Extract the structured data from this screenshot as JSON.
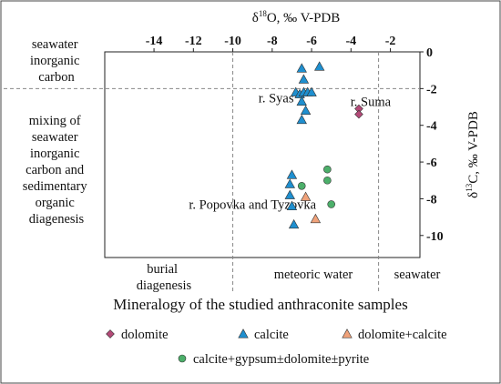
{
  "chart_data": {
    "type": "scatter",
    "title": "",
    "xlabel": "δ18O, ‰ V-PDB",
    "xlabel_main": "δ",
    "xlabel_sup": "18",
    "xlabel_rest": "O, ‰ V-PDB",
    "ylabel": "δ13C, ‰ V-PDB",
    "ylabel_main": "δ",
    "ylabel_sup": "13",
    "ylabel_rest": "C, ‰ V-PDB",
    "xlim": [
      -16.5,
      -0.5
    ],
    "ylim": [
      -11.2,
      0
    ],
    "x_axis_position": "top",
    "y_axis_position": "right",
    "x_ticks": [
      -14,
      -12,
      -10,
      -8,
      -6,
      -4,
      -2
    ],
    "x_tick_labels": [
      "-14",
      "-12",
      "-10",
      "-8",
      "-6",
      "-4",
      "-2"
    ],
    "y_ticks": [
      0,
      -2,
      -4,
      -6,
      -8,
      -10
    ],
    "y_tick_labels": [
      "0",
      "-2",
      "-4",
      "-6",
      "-8",
      "-10"
    ],
    "grid": false,
    "reference_lines": [
      {
        "orientation": "vertical",
        "x": -10,
        "style": "dashed"
      },
      {
        "orientation": "vertical",
        "x": -2.6,
        "style": "dashed"
      },
      {
        "orientation": "horizontal",
        "y": -2,
        "style": "dashed",
        "extends_left": true
      }
    ],
    "series": [
      {
        "name": "dolomite",
        "marker": "diamond",
        "color": "#b44a78",
        "points": [
          {
            "x": -3.6,
            "y": -3.1
          },
          {
            "x": -3.6,
            "y": -3.4
          }
        ]
      },
      {
        "name": "calcite",
        "marker": "triangle",
        "color": "#1f8fcf",
        "points": [
          {
            "x": -6.5,
            "y": -0.9
          },
          {
            "x": -5.6,
            "y": -0.8
          },
          {
            "x": -6.4,
            "y": -1.5
          },
          {
            "x": -6.8,
            "y": -2.2
          },
          {
            "x": -6.6,
            "y": -2.3
          },
          {
            "x": -6.4,
            "y": -2.2
          },
          {
            "x": -6.2,
            "y": -2.2
          },
          {
            "x": -6.0,
            "y": -2.2
          },
          {
            "x": -6.5,
            "y": -2.7
          },
          {
            "x": -6.3,
            "y": -3.2
          },
          {
            "x": -6.5,
            "y": -3.7
          },
          {
            "x": -7.0,
            "y": -6.7
          },
          {
            "x": -7.1,
            "y": -7.2
          },
          {
            "x": -7.1,
            "y": -7.8
          },
          {
            "x": -7.0,
            "y": -8.4
          },
          {
            "x": -6.9,
            "y": -9.4
          }
        ]
      },
      {
        "name": "dolomite+calcite",
        "marker": "triangle",
        "color": "#f0a27a",
        "points": [
          {
            "x": -6.3,
            "y": -7.9
          },
          {
            "x": -5.8,
            "y": -9.1
          }
        ]
      },
      {
        "name": "calcite+gypsum±dolomite±pyrite",
        "marker": "circle",
        "color": "#4caf6a",
        "points": [
          {
            "x": -6.5,
            "y": -7.3
          },
          {
            "x": -5.2,
            "y": -6.4
          },
          {
            "x": -5.2,
            "y": -7.0
          },
          {
            "x": -5.0,
            "y": -8.3
          }
        ]
      }
    ],
    "annotations": [
      {
        "text": "r. Syas",
        "x": -7.8,
        "y": -2.5
      },
      {
        "text": "r. Suma",
        "x": -3.0,
        "y": -2.7
      },
      {
        "text": "r. Popovka and Tyzovka",
        "x": -9.0,
        "y": -8.3
      }
    ],
    "zone_labels": {
      "seawater_inorganic_carbon": [
        "seawater",
        "inorganic",
        "carbon"
      ],
      "mixing": [
        "mixing of",
        "seawater",
        "inorganic",
        "carbon and",
        "sedimentary",
        "organic",
        "diagenesis"
      ],
      "burial": [
        "burial",
        "diagenesis"
      ],
      "meteoric": "meteoric water",
      "seawater": "seawater"
    },
    "legend": {
      "title": "Mineralogy of the studied anthraconite samples",
      "placement": "bottom"
    }
  }
}
